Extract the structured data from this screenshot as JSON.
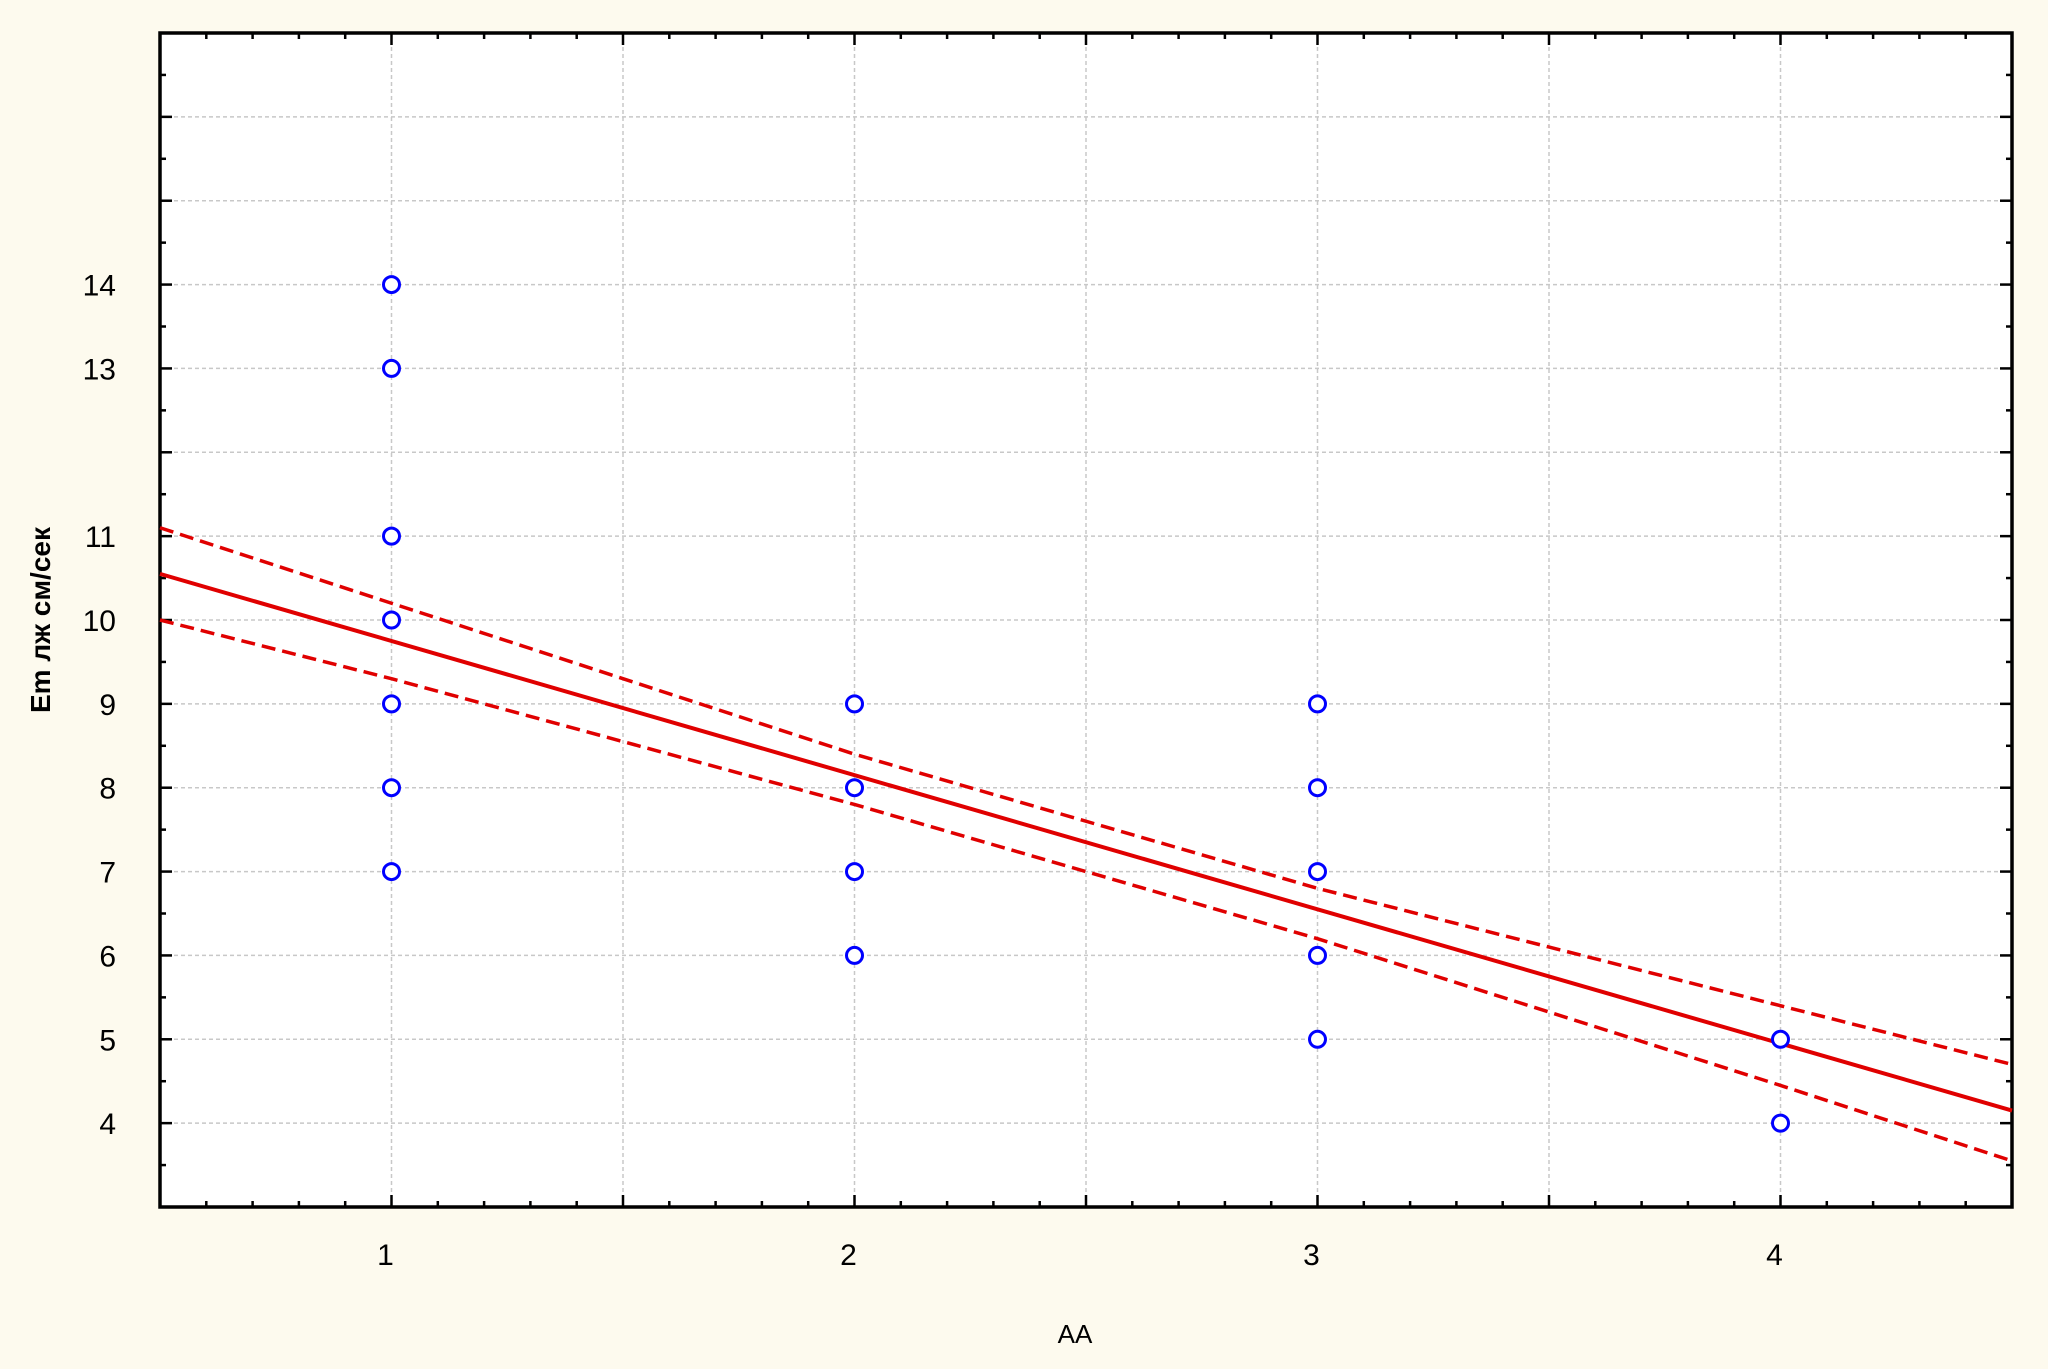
{
  "chart_data": {
    "type": "scatter",
    "xlabel": "AA",
    "ylabel": "Em лж см/сек",
    "xlim": [
      0.5,
      4.5
    ],
    "ylim": [
      3,
      17
    ],
    "x_ticks": [
      1,
      2,
      3,
      4
    ],
    "y_tick_labels": [
      4,
      5,
      6,
      7,
      8,
      9,
      10,
      11,
      13,
      14
    ],
    "grid": true,
    "series": [
      {
        "points": [
          {
            "x": 1,
            "y": 14
          },
          {
            "x": 1,
            "y": 13
          },
          {
            "x": 1,
            "y": 11
          },
          {
            "x": 1,
            "y": 10
          },
          {
            "x": 1,
            "y": 9
          },
          {
            "x": 1,
            "y": 8
          },
          {
            "x": 1,
            "y": 7
          },
          {
            "x": 2,
            "y": 9
          },
          {
            "x": 2,
            "y": 8
          },
          {
            "x": 2,
            "y": 7
          },
          {
            "x": 2,
            "y": 6
          },
          {
            "x": 3,
            "y": 9
          },
          {
            "x": 3,
            "y": 8
          },
          {
            "x": 3,
            "y": 7
          },
          {
            "x": 3,
            "y": 6
          },
          {
            "x": 3,
            "y": 5
          },
          {
            "x": 4,
            "y": 5
          },
          {
            "x": 4,
            "y": 4
          }
        ],
        "marker": "circle-open",
        "color": "#0000ff"
      }
    ],
    "fit_line": {
      "x": [
        0.5,
        4.5
      ],
      "y": [
        10.55,
        4.15
      ],
      "color": "#e00000",
      "style": "solid"
    },
    "confidence_upper": {
      "x": [
        0.5,
        1,
        2,
        3,
        4,
        4.5
      ],
      "y": [
        11.1,
        10.2,
        8.4,
        6.8,
        5.4,
        4.7
      ],
      "color": "#e00000",
      "style": "dashed"
    },
    "confidence_lower": {
      "x": [
        0.5,
        1,
        2,
        3,
        4,
        4.5
      ],
      "y": [
        10.0,
        9.3,
        7.8,
        6.2,
        4.45,
        3.55
      ],
      "color": "#e00000",
      "style": "dashed"
    }
  }
}
